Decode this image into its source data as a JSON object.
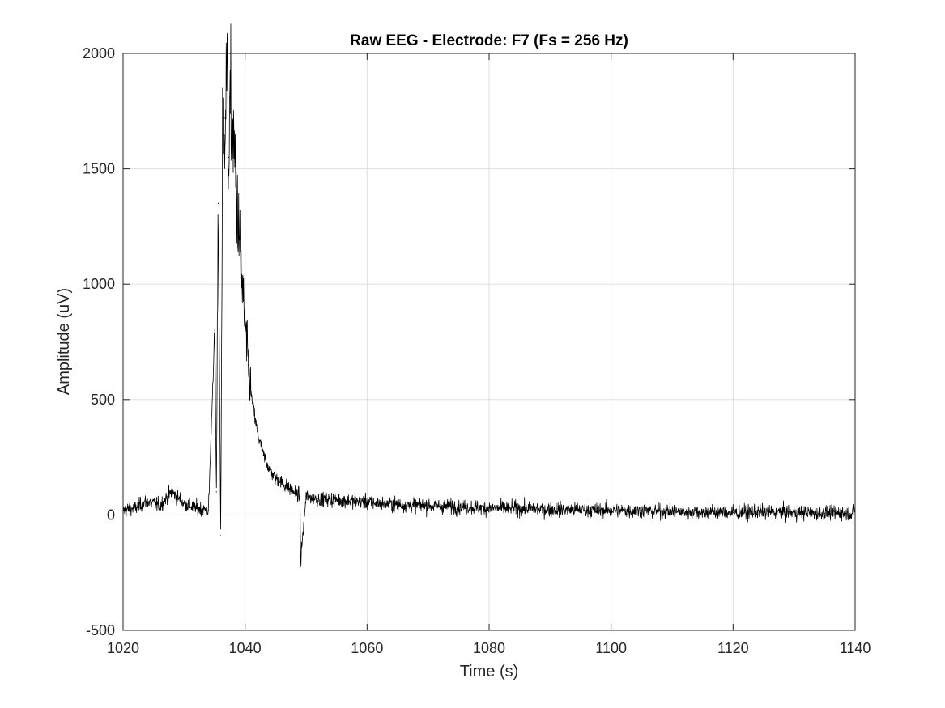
{
  "chart_data": {
    "type": "line",
    "title": "Raw EEG - Electrode: F7 (Fs = 256 Hz)",
    "xlabel": "Time (s)",
    "ylabel": "Amplitude (uV)",
    "xlim": [
      1020,
      1140
    ],
    "ylim": [
      -500,
      2000
    ],
    "xticks": [
      1020,
      1040,
      1060,
      1080,
      1100,
      1120,
      1140
    ],
    "yticks": [
      -500,
      0,
      500,
      1000,
      1500,
      2000
    ],
    "xtick_labels": [
      "1020",
      "1040",
      "1060",
      "1080",
      "1100",
      "1120",
      "1140"
    ],
    "ytick_labels": [
      "-500",
      "0",
      "500",
      "1000",
      "1500",
      "2000"
    ],
    "grid": true,
    "legend": "none",
    "line_color": "#000000",
    "series": [
      {
        "x": [
          1020,
          1022,
          1024,
          1026,
          1028,
          1030,
          1032,
          1034,
          1035,
          1035.3,
          1035.6,
          1036,
          1036.3,
          1036.6,
          1037,
          1037.3,
          1037.6,
          1038,
          1038.5,
          1039,
          1039.5,
          1040,
          1040.5,
          1041,
          1042,
          1043,
          1044,
          1045,
          1046,
          1047,
          1048,
          1049,
          1049.1,
          1050,
          1052,
          1055,
          1058,
          1060,
          1065,
          1070,
          1075,
          1080,
          1085,
          1090,
          1095,
          1100,
          1105,
          1110,
          1115,
          1120,
          1125,
          1130,
          1135,
          1140
        ],
        "y": [
          20,
          30,
          60,
          40,
          100,
          50,
          30,
          20,
          800,
          100,
          1350,
          -90,
          1600,
          1720,
          1920,
          1550,
          1760,
          1650,
          1450,
          1200,
          1000,
          820,
          650,
          520,
          360,
          260,
          200,
          160,
          140,
          120,
          100,
          80,
          -200,
          80,
          70,
          65,
          60,
          55,
          45,
          40,
          35,
          30,
          28,
          25,
          22,
          20,
          18,
          15,
          12,
          10,
          12,
          10,
          8,
          10
        ]
      }
    ]
  }
}
